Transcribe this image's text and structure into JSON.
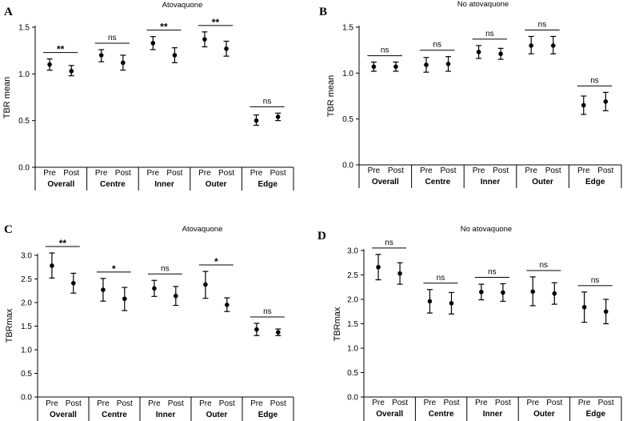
{
  "chart_data": [
    {
      "panel": "A",
      "type": "scatter",
      "title": "Atovaquone",
      "ylabel": "TBR mean",
      "ylim": [
        0,
        1.5
      ],
      "yticks": [
        "0.0",
        "0.5",
        "1.0",
        "1.5"
      ],
      "groups": [
        {
          "name": "Overall",
          "sig": "**",
          "points": [
            {
              "label": "Pre",
              "y": 1.1,
              "lo": 1.04,
              "hi": 1.16
            },
            {
              "label": "Post",
              "y": 1.03,
              "lo": 0.98,
              "hi": 1.09
            }
          ]
        },
        {
          "name": "Centre",
          "sig": "ns",
          "points": [
            {
              "label": "Pre",
              "y": 1.2,
              "lo": 1.13,
              "hi": 1.26
            },
            {
              "label": "Post",
              "y": 1.12,
              "lo": 1.04,
              "hi": 1.2
            }
          ]
        },
        {
          "name": "Inner",
          "sig": "**",
          "points": [
            {
              "label": "Pre",
              "y": 1.33,
              "lo": 1.26,
              "hi": 1.4
            },
            {
              "label": "Post",
              "y": 1.2,
              "lo": 1.12,
              "hi": 1.28
            }
          ]
        },
        {
          "name": "Outer",
          "sig": "**",
          "points": [
            {
              "label": "Pre",
              "y": 1.37,
              "lo": 1.29,
              "hi": 1.45
            },
            {
              "label": "Post",
              "y": 1.27,
              "lo": 1.19,
              "hi": 1.35
            }
          ]
        },
        {
          "name": "Edge",
          "sig": "ns",
          "points": [
            {
              "label": "Pre",
              "y": 0.5,
              "lo": 0.45,
              "hi": 0.56
            },
            {
              "label": "Post",
              "y": 0.54,
              "lo": 0.5,
              "hi": 0.58
            }
          ]
        }
      ]
    },
    {
      "panel": "B",
      "type": "scatter",
      "title": "No atovaquone",
      "ylabel": "TBR mean",
      "ylim": [
        0,
        1.5
      ],
      "yticks": [
        "0.0",
        "0.5",
        "1.0",
        "1.5"
      ],
      "groups": [
        {
          "name": "Overall",
          "sig": "ns",
          "points": [
            {
              "label": "Pre",
              "y": 1.07,
              "lo": 1.02,
              "hi": 1.12
            },
            {
              "label": "Post",
              "y": 1.07,
              "lo": 1.02,
              "hi": 1.12
            }
          ]
        },
        {
          "name": "Centre",
          "sig": "ns",
          "points": [
            {
              "label": "Pre",
              "y": 1.09,
              "lo": 1.01,
              "hi": 1.17
            },
            {
              "label": "Post",
              "y": 1.1,
              "lo": 1.02,
              "hi": 1.18
            }
          ]
        },
        {
          "name": "Inner",
          "sig": "ns",
          "points": [
            {
              "label": "Pre",
              "y": 1.23,
              "lo": 1.16,
              "hi": 1.3
            },
            {
              "label": "Post",
              "y": 1.21,
              "lo": 1.15,
              "hi": 1.27
            }
          ]
        },
        {
          "name": "Outer",
          "sig": "ns",
          "points": [
            {
              "label": "Pre",
              "y": 1.3,
              "lo": 1.21,
              "hi": 1.4
            },
            {
              "label": "Post",
              "y": 1.3,
              "lo": 1.21,
              "hi": 1.4
            }
          ]
        },
        {
          "name": "Edge",
          "sig": "ns",
          "points": [
            {
              "label": "Pre",
              "y": 0.65,
              "lo": 0.55,
              "hi": 0.75
            },
            {
              "label": "Post",
              "y": 0.69,
              "lo": 0.59,
              "hi": 0.79
            }
          ]
        }
      ]
    },
    {
      "panel": "C",
      "type": "scatter",
      "title": "Atovaquone",
      "ylabel": "TBRmax",
      "ylim": [
        0,
        3.0
      ],
      "yticks": [
        "0.0",
        "0.5",
        "1.0",
        "1.5",
        "2.0",
        "2.5",
        "3.0"
      ],
      "groups": [
        {
          "name": "Overall",
          "sig": "**",
          "points": [
            {
              "label": "Pre",
              "y": 2.78,
              "lo": 2.52,
              "hi": 3.05
            },
            {
              "label": "Post",
              "y": 2.41,
              "lo": 2.2,
              "hi": 2.62
            }
          ]
        },
        {
          "name": "Centre",
          "sig": "*",
          "points": [
            {
              "label": "Pre",
              "y": 2.27,
              "lo": 2.03,
              "hi": 2.51
            },
            {
              "label": "Post",
              "y": 2.08,
              "lo": 1.83,
              "hi": 2.32
            }
          ]
        },
        {
          "name": "Inner",
          "sig": "ns",
          "points": [
            {
              "label": "Pre",
              "y": 2.3,
              "lo": 2.13,
              "hi": 2.47
            },
            {
              "label": "Post",
              "y": 2.14,
              "lo": 1.94,
              "hi": 2.34
            }
          ]
        },
        {
          "name": "Outer",
          "sig": "*",
          "points": [
            {
              "label": "Pre",
              "y": 2.38,
              "lo": 2.09,
              "hi": 2.66
            },
            {
              "label": "Post",
              "y": 1.95,
              "lo": 1.81,
              "hi": 2.1
            }
          ]
        },
        {
          "name": "Edge",
          "sig": "ns",
          "points": [
            {
              "label": "Pre",
              "y": 1.43,
              "lo": 1.3,
              "hi": 1.56
            },
            {
              "label": "Post",
              "y": 1.37,
              "lo": 1.3,
              "hi": 1.44
            }
          ]
        }
      ]
    },
    {
      "panel": "D",
      "type": "scatter",
      "title": "No atovaquone",
      "ylabel": "TBRmax",
      "ylim": [
        0,
        3.0
      ],
      "yticks": [
        "0.0",
        "0.5",
        "1.0",
        "1.5",
        "2.0",
        "2.5",
        "3.0"
      ],
      "groups": [
        {
          "name": "Overall",
          "sig": "ns",
          "points": [
            {
              "label": "Pre",
              "y": 2.66,
              "lo": 2.4,
              "hi": 2.92
            },
            {
              "label": "Post",
              "y": 2.53,
              "lo": 2.31,
              "hi": 2.75
            }
          ]
        },
        {
          "name": "Centre",
          "sig": "ns",
          "points": [
            {
              "label": "Pre",
              "y": 1.96,
              "lo": 1.72,
              "hi": 2.2
            },
            {
              "label": "Post",
              "y": 1.92,
              "lo": 1.7,
              "hi": 2.14
            }
          ]
        },
        {
          "name": "Inner",
          "sig": "ns",
          "points": [
            {
              "label": "Pre",
              "y": 2.15,
              "lo": 1.99,
              "hi": 2.31
            },
            {
              "label": "Post",
              "y": 2.14,
              "lo": 1.96,
              "hi": 2.32
            }
          ]
        },
        {
          "name": "Outer",
          "sig": "ns",
          "points": [
            {
              "label": "Pre",
              "y": 2.16,
              "lo": 1.87,
              "hi": 2.46
            },
            {
              "label": "Post",
              "y": 2.12,
              "lo": 1.9,
              "hi": 2.34
            }
          ]
        },
        {
          "name": "Edge",
          "sig": "ns",
          "points": [
            {
              "label": "Pre",
              "y": 1.84,
              "lo": 1.53,
              "hi": 2.15
            },
            {
              "label": "Post",
              "y": 1.75,
              "lo": 1.5,
              "hi": 2.0
            }
          ]
        }
      ]
    }
  ]
}
